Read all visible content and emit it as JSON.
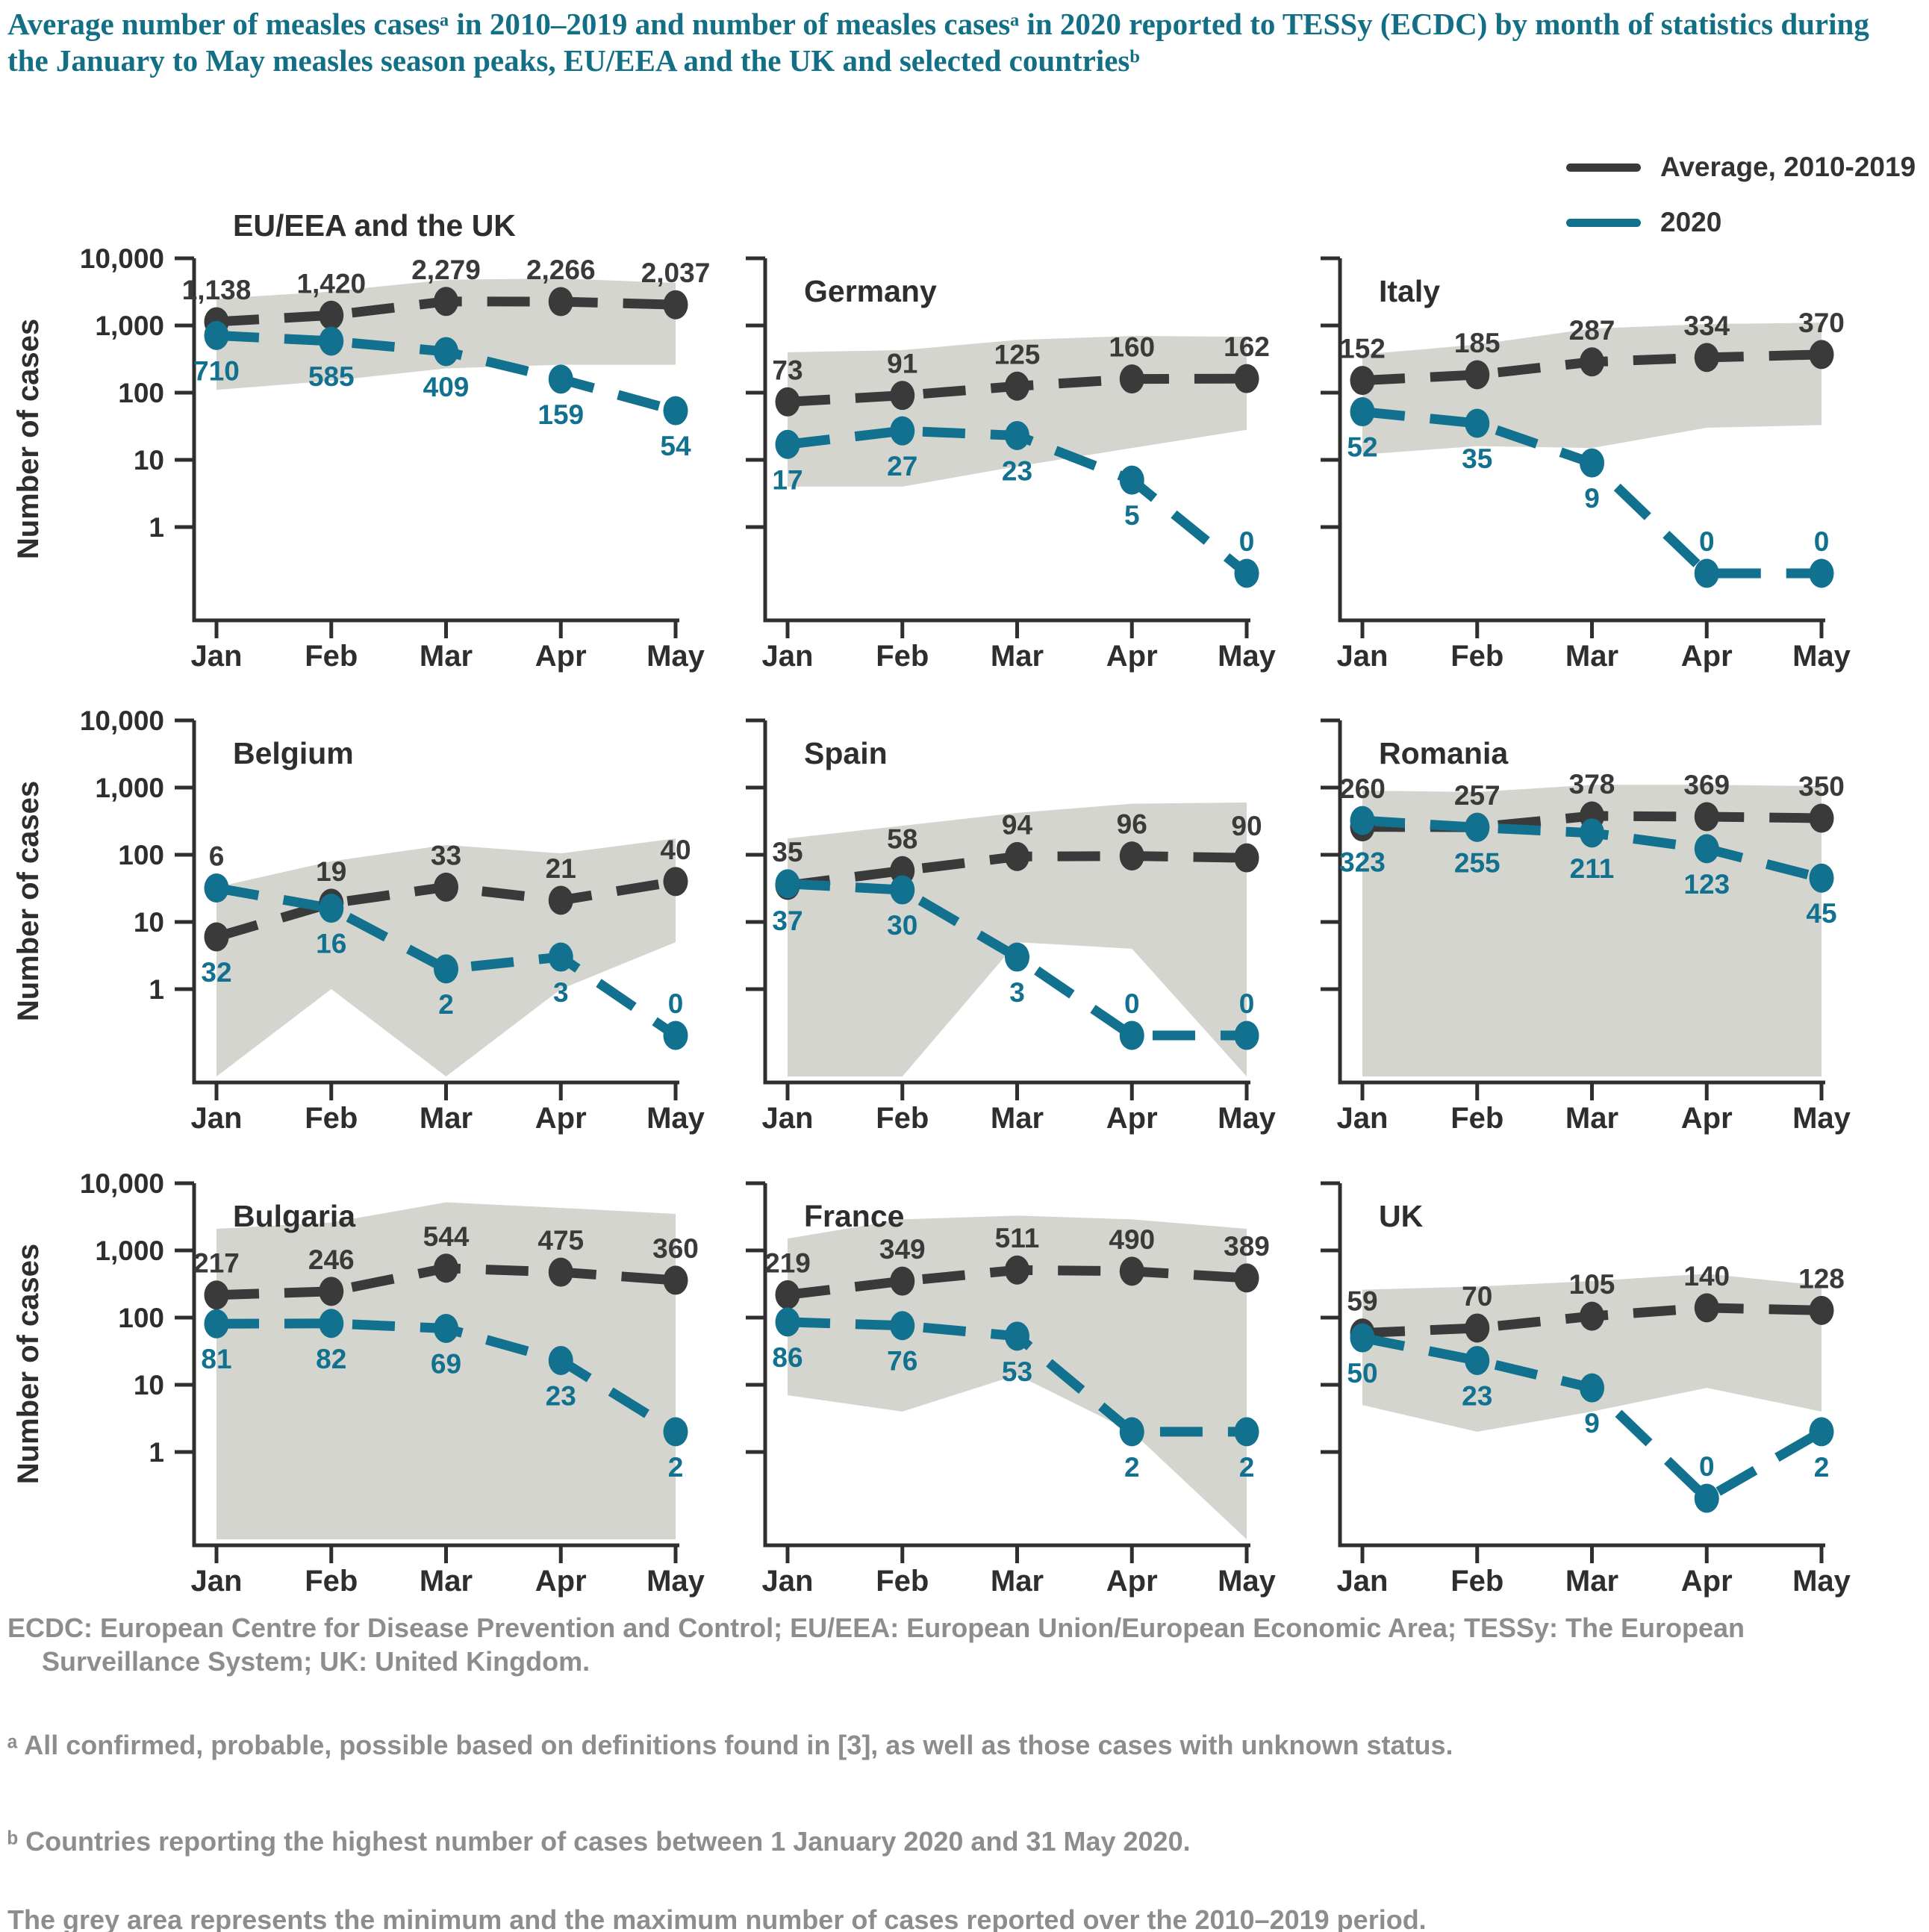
{
  "title": "Average number of measles casesᵃ in 2010–2019 and number of measles casesᵃ in 2020 reported to TESSy (ECDC) by month of statistics during the January to May measles season peaks, EU/EEA and the UK and selected countriesᵇ",
  "legend": {
    "entries": [
      {
        "label": "Average, 2010-2019",
        "color": "#3a3a3a"
      },
      {
        "label": "2020",
        "color": "#11718e"
      }
    ]
  },
  "y_axis": {
    "title": "Number of cases",
    "ticks": [
      "10,000",
      "1,000",
      "100",
      "10",
      "1"
    ],
    "scale": "log",
    "range": [
      1,
      10000
    ]
  },
  "months": [
    "Jan",
    "Feb",
    "Mar",
    "Apr",
    "May"
  ],
  "colors": {
    "average": "#3a3a3a",
    "year2020": "#11718e",
    "band": "#d5d5cf",
    "axis": "#2f2f2f",
    "title": "#136f85",
    "chart_text": "#2e2e2e",
    "footer": "#8d8d8d"
  },
  "footnotes": {
    "abbrev": "ECDC: European Centre for Disease Prevention and Control; EU/EEA: European Union/European Economic Area; TESSy: The European Surveillance System; UK: United Kingdom.",
    "note_a": "ᵃ All confirmed, probable, possible based on definitions found in [3], as well as those cases with unknown status.",
    "note_b": "ᵇ Countries reporting the highest number of cases between 1 January 2020 and 31 May 2020.",
    "grey_area": "The grey area represents the minimum and the maximum number of cases reported over the 2010–2019 period."
  },
  "chart_data": [
    {
      "type": "line",
      "title": "EU/EEA and the UK",
      "title_outside": true,
      "series": [
        {
          "name": "Average, 2010-2019",
          "values": [
            1138,
            1420,
            2279,
            2266,
            2037
          ],
          "labels": [
            "1,138",
            "1,420",
            "2,279",
            "2,266",
            "2,037"
          ]
        },
        {
          "name": "2020",
          "values": [
            710,
            585,
            409,
            159,
            54
          ],
          "labels": [
            "710",
            "585",
            "409",
            "159",
            "54"
          ]
        }
      ],
      "band_min": [
        110,
        150,
        230,
        260,
        260
      ],
      "band_max": [
        2500,
        3200,
        4800,
        5000,
        4300
      ]
    },
    {
      "type": "line",
      "title": "Germany",
      "title_outside": false,
      "series": [
        {
          "name": "Average, 2010-2019",
          "values": [
            73,
            91,
            125,
            160,
            162
          ],
          "labels": [
            "73",
            "91",
            "125",
            "160",
            "162"
          ]
        },
        {
          "name": "2020",
          "values": [
            17,
            27,
            23,
            5,
            0
          ],
          "labels": [
            "17",
            "27",
            "23",
            "5",
            "0"
          ]
        }
      ],
      "band_min": [
        4,
        4,
        8,
        15,
        28
      ],
      "band_max": [
        400,
        430,
        610,
        700,
        680
      ]
    },
    {
      "type": "line",
      "title": "Italy",
      "title_outside": false,
      "series": [
        {
          "name": "Average, 2010-2019",
          "values": [
            152,
            185,
            287,
            334,
            370
          ],
          "labels": [
            "152",
            "185",
            "287",
            "334",
            "370"
          ]
        },
        {
          "name": "2020",
          "values": [
            52,
            35,
            9,
            0,
            0
          ],
          "labels": [
            "52",
            "35",
            "9",
            "0",
            "0"
          ]
        }
      ],
      "band_min": [
        12,
        16,
        15,
        30,
        33
      ],
      "band_max": [
        370,
        520,
        900,
        1050,
        1100
      ]
    },
    {
      "type": "line",
      "title": "Belgium",
      "title_outside": false,
      "series": [
        {
          "name": "Average, 2010-2019",
          "values": [
            6,
            19,
            33,
            21,
            40
          ],
          "labels": [
            "6",
            "19",
            "33",
            "21",
            "40"
          ]
        },
        {
          "name": "2020",
          "values": [
            32,
            16,
            2,
            3,
            0
          ],
          "labels": [
            "32",
            "16",
            "2",
            "3",
            "0"
          ]
        }
      ],
      "band_min": [
        0,
        1,
        0,
        1,
        5
      ],
      "band_max": [
        33,
        80,
        140,
        105,
        175
      ]
    },
    {
      "type": "line",
      "title": "Spain",
      "title_outside": false,
      "series": [
        {
          "name": "Average, 2010-2019",
          "values": [
            35,
            58,
            94,
            96,
            90
          ],
          "labels": [
            "35",
            "58",
            "94",
            "96",
            "90"
          ]
        },
        {
          "name": "2020",
          "values": [
            37,
            30,
            3,
            0,
            0
          ],
          "labels": [
            "37",
            "30",
            "3",
            "0",
            "0"
          ]
        }
      ],
      "band_min": [
        0,
        0,
        5,
        4,
        0
      ],
      "band_max": [
        175,
        270,
        420,
        575,
        600
      ]
    },
    {
      "type": "line",
      "title": "Romania",
      "title_outside": false,
      "series": [
        {
          "name": "Average, 2010-2019",
          "values": [
            260,
            257,
            378,
            369,
            350
          ],
          "labels": [
            "260",
            "257",
            "378",
            "369",
            "350"
          ]
        },
        {
          "name": "2020",
          "values": [
            323,
            255,
            211,
            123,
            45
          ],
          "labels": [
            "323",
            "255",
            "211",
            "123",
            "45"
          ]
        }
      ],
      "band_min": [
        0,
        0,
        0,
        0,
        0
      ],
      "band_max": [
        900,
        860,
        1100,
        1100,
        1050
      ]
    },
    {
      "type": "line",
      "title": "Bulgaria",
      "title_outside": false,
      "series": [
        {
          "name": "Average, 2010-2019",
          "values": [
            217,
            246,
            544,
            475,
            360
          ],
          "labels": [
            "217",
            "246",
            "544",
            "475",
            "360"
          ]
        },
        {
          "name": "2020",
          "values": [
            81,
            82,
            69,
            23,
            2
          ],
          "labels": [
            "81",
            "82",
            "69",
            "23",
            "2"
          ]
        }
      ],
      "band_min": [
        0,
        0,
        0,
        0,
        0
      ],
      "band_max": [
        2100,
        2600,
        5200,
        4300,
        3500
      ]
    },
    {
      "type": "line",
      "title": "France",
      "title_outside": false,
      "series": [
        {
          "name": "Average, 2010-2019",
          "values": [
            219,
            349,
            511,
            490,
            389
          ],
          "labels": [
            "219",
            "349",
            "511",
            "490",
            "389"
          ]
        },
        {
          "name": "2020",
          "values": [
            86,
            76,
            53,
            2,
            2
          ],
          "labels": [
            "86",
            "76",
            "53",
            "2",
            "2"
          ]
        }
      ],
      "band_min": [
        7,
        4,
        14,
        2,
        0
      ],
      "band_max": [
        1500,
        2900,
        3300,
        2900,
        2100
      ]
    },
    {
      "type": "line",
      "title": "UK",
      "title_outside": false,
      "series": [
        {
          "name": "Average, 2010-2019",
          "values": [
            59,
            70,
            105,
            140,
            128
          ],
          "labels": [
            "59",
            "70",
            "105",
            "140",
            "128"
          ]
        },
        {
          "name": "2020",
          "values": [
            50,
            23,
            9,
            0,
            2
          ],
          "labels": [
            "50",
            "23",
            "9",
            "0",
            "2"
          ]
        }
      ],
      "band_min": [
        5,
        2,
        4,
        9,
        4
      ],
      "band_max": [
        260,
        290,
        350,
        450,
        300
      ]
    }
  ]
}
